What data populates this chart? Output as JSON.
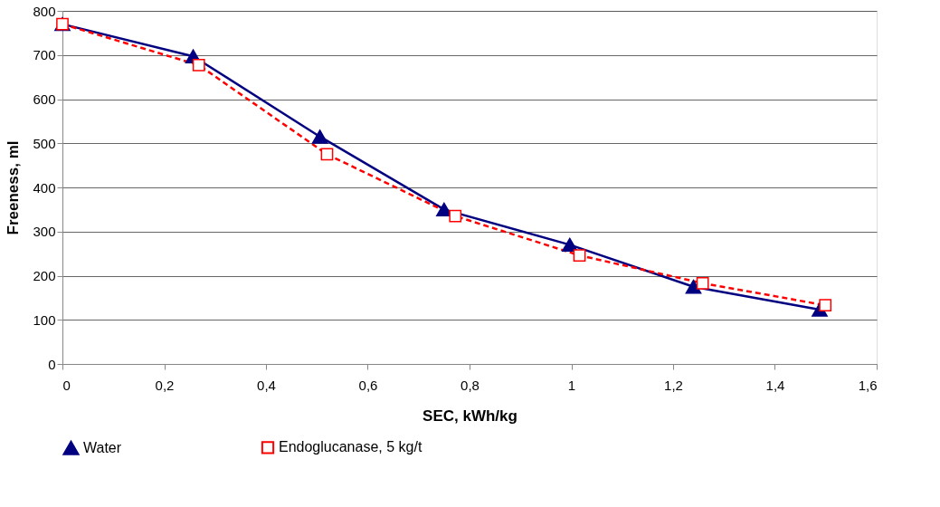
{
  "chart_data": {
    "type": "line",
    "xlabel": "SEC, kWh/kg",
    "ylabel": "Freeness, ml",
    "xlim": [
      0,
      1.6
    ],
    "ylim": [
      0,
      800
    ],
    "xticks": [
      0,
      {
        "value": 0.2,
        "label": "0,2"
      },
      {
        "value": 0.4,
        "label": "0,4"
      },
      {
        "value": 0.6,
        "label": "0,6"
      },
      {
        "value": 0.8,
        "label": "0,8"
      },
      1,
      {
        "value": 1.2,
        "label": "1,2"
      },
      {
        "value": 1.4,
        "label": "1,4"
      },
      {
        "value": 1.6,
        "label": "1,6"
      }
    ],
    "yticks": [
      0,
      100,
      200,
      300,
      400,
      500,
      600,
      700,
      800
    ],
    "grid": "y",
    "legend": "bottom",
    "series": [
      {
        "name": "Water",
        "color": "#000080",
        "marker": "triangle",
        "line_style": "solid",
        "x": [
          0,
          0.257,
          0.506,
          0.75,
          0.997,
          1.24,
          1.488
        ],
        "values": [
          770,
          697,
          515,
          350,
          270,
          175,
          123
        ]
      },
      {
        "name": "Endoglucanase, 5 kg/t",
        "color": "#ff0000",
        "marker": "square",
        "line_style": "dashed",
        "x": [
          0,
          0.268,
          0.52,
          0.772,
          1.016,
          1.258,
          1.499
        ],
        "values": [
          770,
          677,
          475,
          335,
          246,
          183,
          133
        ]
      }
    ]
  }
}
